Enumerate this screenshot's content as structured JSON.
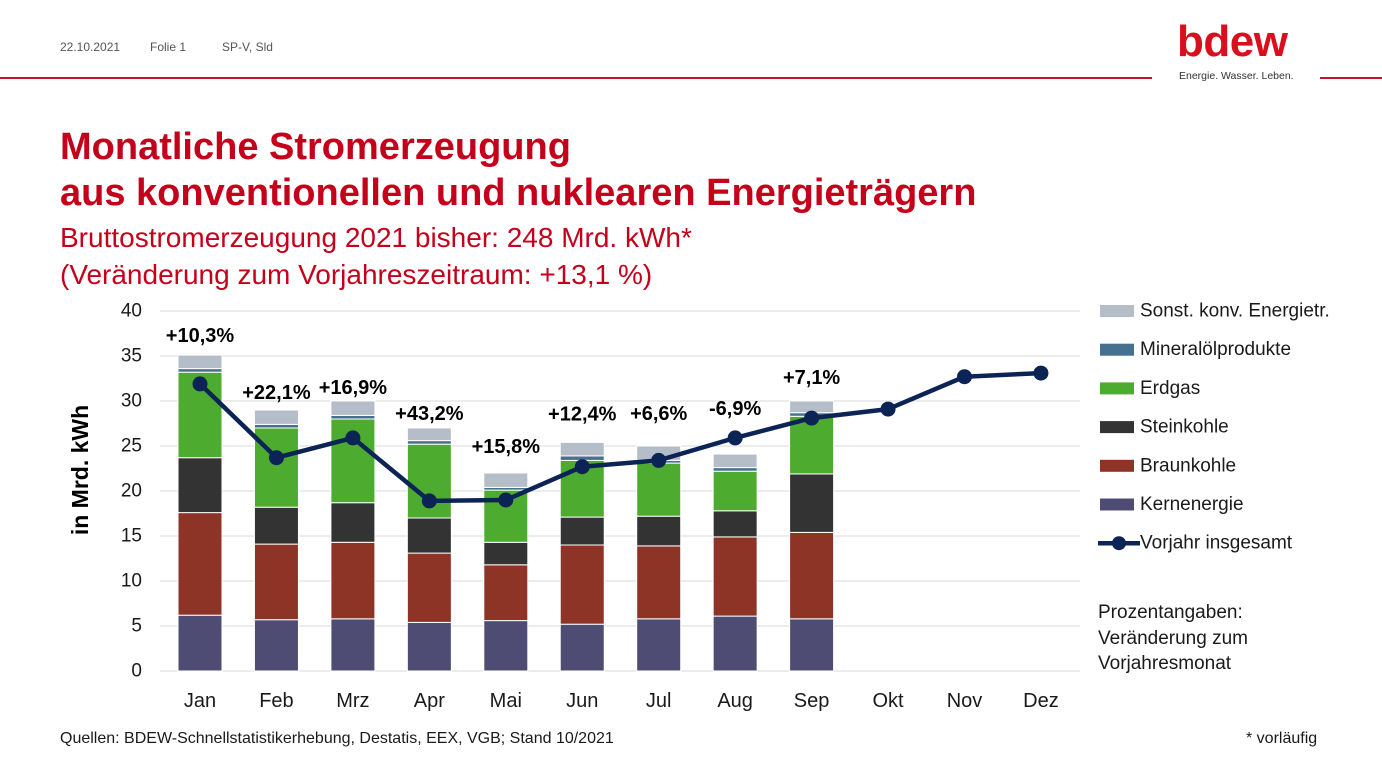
{
  "header": {
    "date": "22.10.2021",
    "slide": "Folie 1",
    "author": "SP-V, Sld"
  },
  "logo": {
    "wordmark": "bdew",
    "tagline": "Energie. Wasser. Leben."
  },
  "title": {
    "line1": "Monatliche Stromerzeugung",
    "line2": "aus konventionellen und nuklearen Energieträgern"
  },
  "subtitle": {
    "line1": "Bruttostromerzeugung 2021 bisher: 248 Mrd. kWh*",
    "line2": "(Veränderung zum Vorjahreszeitraum: +13,1 %)"
  },
  "colors": {
    "title_red": "#c4001a",
    "logo_red": "#d8101e",
    "header_rule": "#c8102e",
    "gridline": "#d9d9d9"
  },
  "chart_data": {
    "type": "bar",
    "stacked": true,
    "ylabel": "in Mrd. kWh",
    "ylim": [
      0,
      40
    ],
    "y_ticks": [
      "0",
      "5",
      "10",
      "15",
      "20",
      "25",
      "30",
      "35",
      "40"
    ],
    "grid": true,
    "legend_position": "right",
    "categories": [
      "Jan",
      "Feb",
      "Mrz",
      "Apr",
      "Mai",
      "Jun",
      "Jul",
      "Aug",
      "Sep",
      "Okt",
      "Nov",
      "Dez"
    ],
    "series": [
      {
        "name": "Kernenergie",
        "type": "bar",
        "color": "#4f4c74",
        "values": [
          6.2,
          5.7,
          5.8,
          5.4,
          5.6,
          5.2,
          5.8,
          6.1,
          5.8,
          null,
          null,
          null
        ]
      },
      {
        "name": "Braunkohle",
        "type": "bar",
        "color": "#8d3427",
        "values": [
          11.4,
          8.4,
          8.5,
          7.7,
          6.2,
          8.8,
          8.1,
          8.8,
          9.6,
          null,
          null,
          null
        ]
      },
      {
        "name": "Steinkohle",
        "type": "bar",
        "color": "#333333",
        "values": [
          6.1,
          4.1,
          4.4,
          3.9,
          2.5,
          3.1,
          3.3,
          2.9,
          6.5,
          null,
          null,
          null
        ]
      },
      {
        "name": "Erdgas",
        "type": "bar",
        "color": "#4dab2f",
        "values": [
          9.5,
          8.8,
          9.3,
          8.2,
          5.8,
          6.3,
          5.9,
          4.4,
          6.4,
          null,
          null,
          null
        ]
      },
      {
        "name": "Mineralölprodukte",
        "type": "bar",
        "color": "#45708f",
        "values": [
          0.4,
          0.4,
          0.4,
          0.4,
          0.3,
          0.5,
          0.3,
          0.4,
          0.4,
          null,
          null,
          null
        ]
      },
      {
        "name": "Sonst. konv. Energietr.",
        "type": "bar",
        "color": "#b5bec8",
        "values": [
          1.5,
          1.6,
          1.6,
          1.4,
          1.6,
          1.5,
          1.6,
          1.5,
          1.3,
          null,
          null,
          null
        ]
      },
      {
        "name": "Vorjahr insgesamt",
        "type": "line",
        "color": "#0c2455",
        "values": [
          31.9,
          23.7,
          25.9,
          18.9,
          19.0,
          22.7,
          23.4,
          25.9,
          28.1,
          29.1,
          32.7,
          33.1
        ]
      }
    ],
    "change_labels": [
      "+10,3%",
      "+22,1%",
      "+16,9%",
      "+43,2%",
      "+15,8%",
      "+12,4%",
      "+6,6%",
      "-6,9%",
      "+7,1%"
    ]
  },
  "note": {
    "line1": "Prozentangaben:",
    "line2": "Veränderung zum",
    "line3": "Vorjahresmonat"
  },
  "footer": {
    "sources": "Quellen: BDEW-Schnellstatistikerhebung, Destatis, EEX, VGB; Stand 10/2021",
    "footnote": "* vorläufig"
  }
}
